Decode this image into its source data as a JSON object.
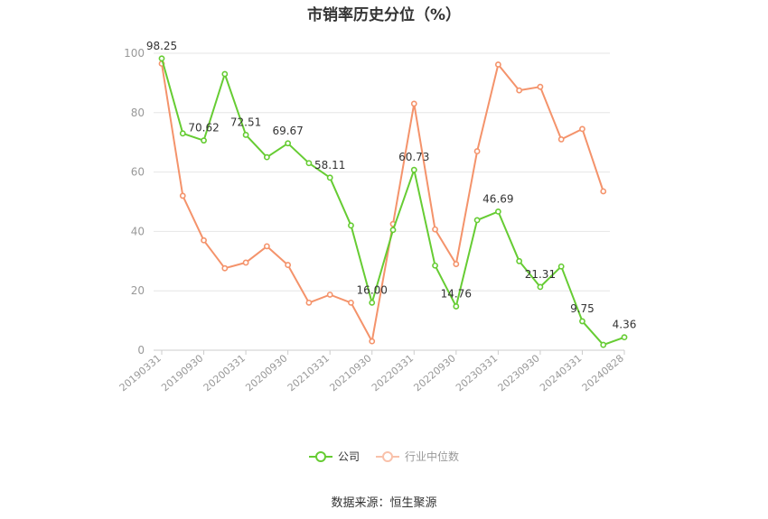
{
  "title": "市销率历史分位（%）",
  "source": "数据来源：恒生聚源",
  "legend": {
    "company": "公司",
    "industry": "行业中位数"
  },
  "colors": {
    "company": "#66cc33",
    "industry": "#f4936b",
    "grid": "#e6e6e6",
    "axis_text": "#999999"
  },
  "chart_data": {
    "type": "line",
    "title": "市销率历史分位（%）",
    "ylim": [
      0,
      100
    ],
    "yticks": [
      0,
      20,
      40,
      60,
      80,
      100
    ],
    "grid": true,
    "legend_position": "bottom",
    "tick_labels": [
      "20190331",
      "20190930",
      "20200331",
      "20200930",
      "20210331",
      "20210930",
      "20220331",
      "20220930",
      "20230331",
      "20230930",
      "20240331",
      "20240828"
    ],
    "x": [
      "20190331",
      "20190630",
      "20190930",
      "20191231",
      "20200331",
      "20200630",
      "20200930",
      "20201231",
      "20210331",
      "20210630",
      "20210930",
      "20211231",
      "20220331",
      "20220630",
      "20220930",
      "20221231",
      "20230331",
      "20230630",
      "20230930",
      "20231231",
      "20240331",
      "20240630",
      "20240828"
    ],
    "series": [
      {
        "name": "公司",
        "values": [
          98.25,
          73.0,
          70.62,
          93.0,
          72.51,
          65.0,
          69.67,
          63.0,
          58.11,
          42.0,
          16.0,
          40.5,
          60.73,
          28.5,
          14.76,
          43.8,
          46.69,
          30.0,
          21.31,
          28.2,
          9.75,
          1.8,
          4.36
        ]
      },
      {
        "name": "行业中位数",
        "values": [
          96.5,
          52.0,
          37.0,
          27.6,
          29.5,
          35.0,
          28.7,
          16.0,
          18.7,
          16.0,
          3.0,
          42.5,
          83.0,
          40.7,
          29.0,
          67.0,
          96.2,
          87.5,
          88.7,
          71.0,
          74.5,
          53.5,
          null
        ]
      }
    ],
    "point_labels": [
      {
        "series": 0,
        "index": 0,
        "text": "98.25"
      },
      {
        "series": 0,
        "index": 2,
        "text": "70.62"
      },
      {
        "series": 0,
        "index": 4,
        "text": "72.51"
      },
      {
        "series": 0,
        "index": 6,
        "text": "69.67"
      },
      {
        "series": 0,
        "index": 8,
        "text": "58.11"
      },
      {
        "series": 0,
        "index": 10,
        "text": "16.00"
      },
      {
        "series": 0,
        "index": 12,
        "text": "60.73"
      },
      {
        "series": 0,
        "index": 14,
        "text": "14.76"
      },
      {
        "series": 0,
        "index": 16,
        "text": "46.69"
      },
      {
        "series": 0,
        "index": 18,
        "text": "21.31"
      },
      {
        "series": 0,
        "index": 20,
        "text": "9.75"
      },
      {
        "series": 0,
        "index": 22,
        "text": "4.36"
      }
    ]
  }
}
